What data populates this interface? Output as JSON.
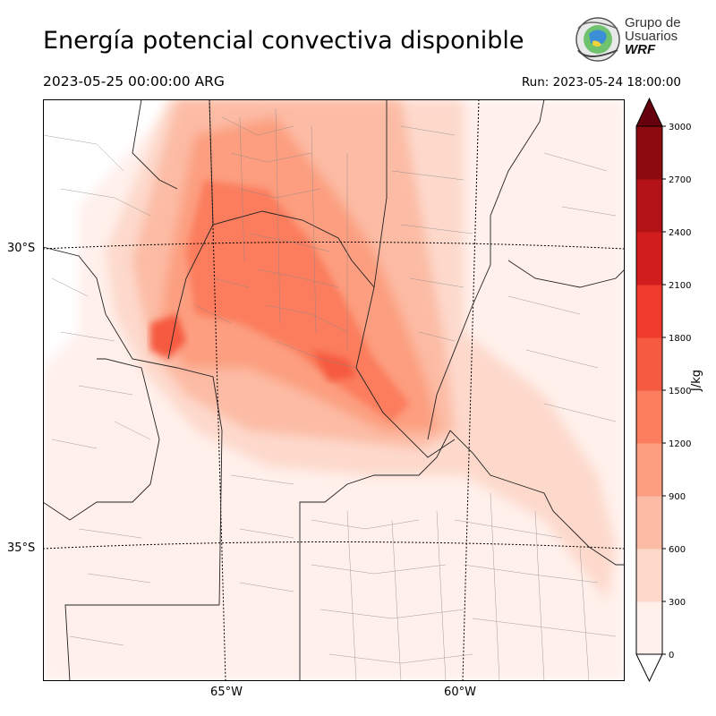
{
  "header": {
    "title": "Energía potencial convectiva disponible",
    "valid_time": "2023-05-25 00:00:00 ARG",
    "run_time": "Run: 2023-05-24 18:00:00"
  },
  "logo": {
    "line1": "Grupo de",
    "line2": "Usuarios",
    "line3": "WRF"
  },
  "map": {
    "lat_labels": [
      "30°S",
      "35°S"
    ],
    "lon_labels": [
      "65°W",
      "60°W"
    ]
  },
  "colorbar": {
    "label": "J/kg",
    "ticks": [
      "0",
      "300",
      "600",
      "900",
      "1200",
      "1500",
      "1800",
      "2100",
      "2400",
      "2700",
      "3000"
    ],
    "colors": [
      "#fff0eb",
      "#fdd9cc",
      "#fcbba4",
      "#fc9e7f",
      "#fb7d5d",
      "#f65a40",
      "#ef3b2c",
      "#d21d1e",
      "#b31217",
      "#8c0b11",
      "#67000d"
    ]
  }
}
